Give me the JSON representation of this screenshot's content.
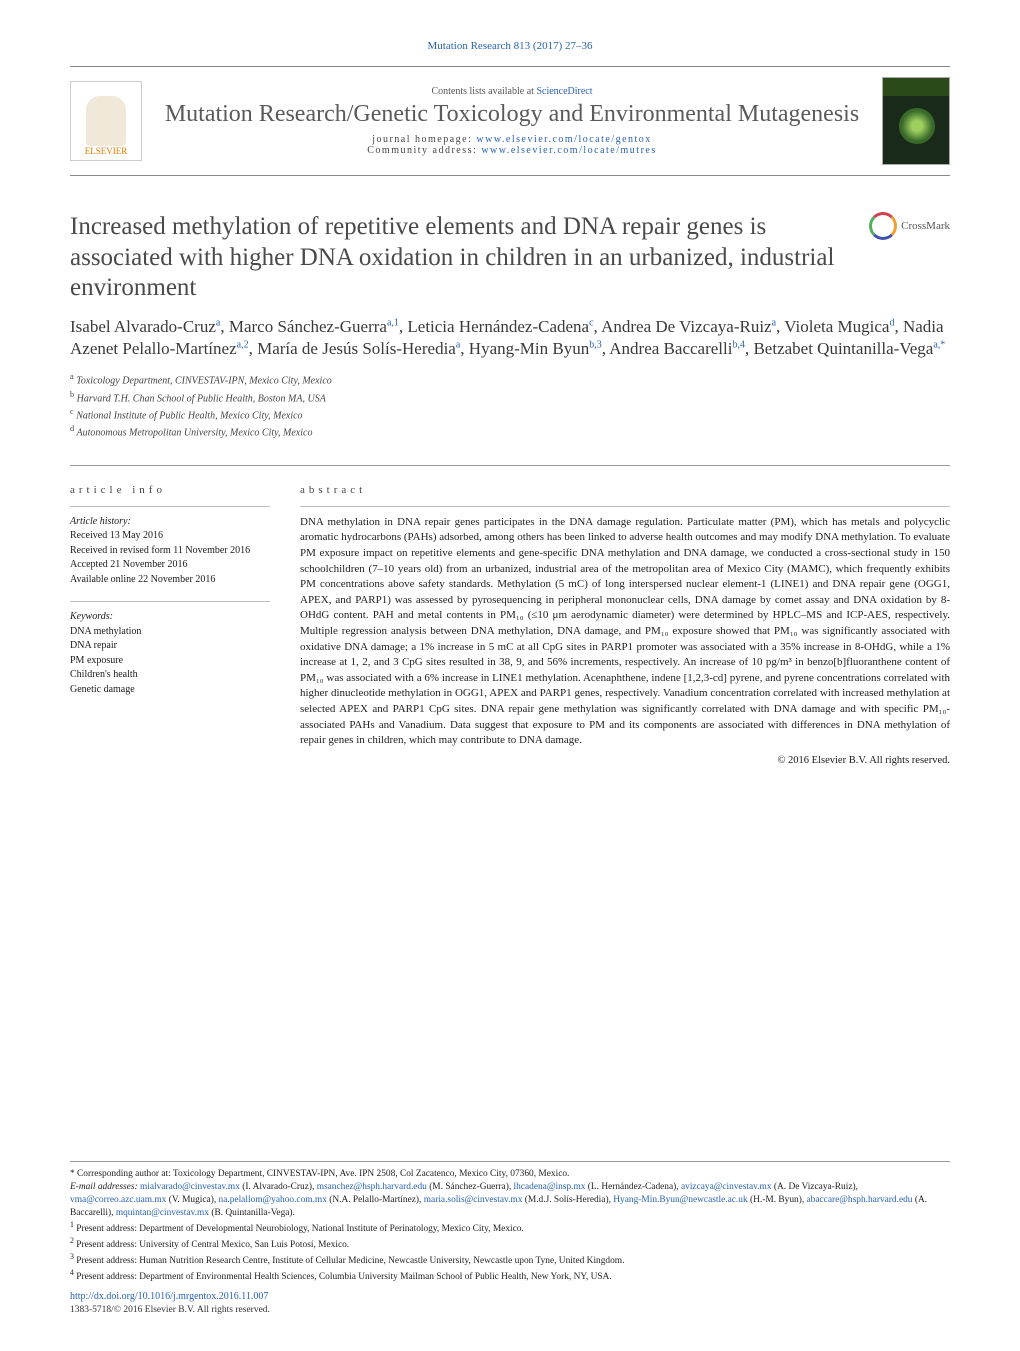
{
  "citation": "Mutation Research 813 (2017) 27–36",
  "header": {
    "contents_prefix": "Contents lists available at ",
    "contents_link": "ScienceDirect",
    "journal_name": "Mutation Research/Genetic Toxicology and Environmental Mutagenesis",
    "homepage_label": "journal homepage: ",
    "homepage_url": "www.elsevier.com/locate/gentox",
    "community_label": "Community address: ",
    "community_url": "www.elsevier.com/locate/mutres",
    "publisher": "ELSEVIER"
  },
  "crossmark_label": "CrossMark",
  "title": "Increased methylation of repetitive elements and DNA repair genes is associated with higher DNA oxidation in children in an urbanized, industrial environment",
  "authors_html": "Isabel Alvarado-Cruz<sup>a</sup>, Marco Sánchez-Guerra<sup>a,1</sup>, Leticia Hernández-Cadena<sup>c</sup>, Andrea De Vizcaya-Ruiz<sup>a</sup>, Violeta Mugica<sup>d</sup>, Nadia Azenet Pelallo-Martínez<sup>a,2</sup>, María de Jesús Solís-Heredia<sup>a</sup>, Hyang-Min Byun<sup>b,3</sup>, Andrea Baccarelli<sup>b,4</sup>, Betzabet Quintanilla-Vega<sup>a,*</sup>",
  "affiliations": [
    "a Toxicology Department, CINVESTAV-IPN, Mexico City, Mexico",
    "b Harvard T.H. Chan School of Public Health, Boston MA, USA",
    "c National Institute of Public Health, Mexico City, Mexico",
    "d Autonomous Metropolitan University, Mexico City, Mexico"
  ],
  "article_info": {
    "heading": "article info",
    "history_label": "Article history:",
    "received": "Received 13 May 2016",
    "revised": "Received in revised form 11 November 2016",
    "accepted": "Accepted 21 November 2016",
    "online": "Available online 22 November 2016",
    "keywords_label": "Keywords:",
    "keywords": [
      "DNA methylation",
      "DNA repair",
      "PM exposure",
      "Children's health",
      "Genetic damage"
    ]
  },
  "abstract": {
    "heading": "abstract",
    "body": "DNA methylation in DNA repair genes participates in the DNA damage regulation. Particulate matter (PM), which has metals and polycyclic aromatic hydrocarbons (PAHs) adsorbed, among others has been linked to adverse health outcomes and may modify DNA methylation. To evaluate PM exposure impact on repetitive elements and gene-specific DNA methylation and DNA damage, we conducted a cross-sectional study in 150 schoolchildren (7–10 years old) from an urbanized, industrial area of the metropolitan area of Mexico City (MAMC), which frequently exhibits PM concentrations above safety standards. Methylation (5 mC) of long interspersed nuclear element-1 (LINE1) and DNA repair gene (OGG1, APEX, and PARP1) was assessed by pyrosequencing in peripheral mononuclear cells, DNA damage by comet assay and DNA oxidation by 8-OHdG content. PAH and metal contents in PM₁₀ (≤10 μm aerodynamic diameter) were determined by HPLC–MS and ICP-AES, respectively. Multiple regression analysis between DNA methylation, DNA damage, and PM₁₀ exposure showed that PM₁₀ was significantly associated with oxidative DNA damage; a 1% increase in 5 mC at all CpG sites in PARP1 promoter was associated with a 35% increase in 8-OHdG, while a 1% increase at 1, 2, and 3 CpG sites resulted in 38, 9, and 56% increments, respectively. An increase of 10 pg/m³ in benzo[b]fluoranthene content of PM₁₀ was associated with a 6% increase in LINE1 methylation. Acenaphthene, indene [1,2,3-cd] pyrene, and pyrene concentrations correlated with higher dinucleotide methylation in OGG1, APEX and PARP1 genes, respectively. Vanadium concentration correlated with increased methylation at selected APEX and PARP1 CpG sites. DNA repair gene methylation was significantly correlated with DNA damage and with specific PM₁₀-associated PAHs and Vanadium. Data suggest that exposure to PM and its components are associated with differences in DNA methylation of repair genes in children, which may contribute to DNA damage.",
    "copyright": "© 2016 Elsevier B.V. All rights reserved."
  },
  "footnotes": {
    "corresponding": "* Corresponding author at: Toxicology Department, CINVESTAV-IPN, Ave. IPN 2508, Col Zacatenco, Mexico City, 07360, Mexico.",
    "emails_label": "E-mail addresses: ",
    "emails": "mialvarado@cinvestav.mx (I. Alvarado-Cruz), msanchez@hsph.harvard.edu (M. Sánchez-Guerra), lhcadena@insp.mx (L. Hernández-Cadena), avizcaya@cinvestav.mx (A. De Vizcaya-Ruiz), vma@correo.azc.uam.mx (V. Mugica), na.pelallom@yahoo.com.mx (N.A. Pelallo-Martínez), maria.solis@cinvestav.mx (M.d.J. Solís-Heredia), Hyang-Min.Byun@newcastle.ac.uk (H.-M. Byun), abaccare@hsph.harvard.edu (A. Baccarelli), mquintan@cinvestav.mx (B. Quintanilla-Vega).",
    "notes": [
      "1 Present address: Department of Developmental Neurobiology, National Institute of Perinatology, Mexico City, Mexico.",
      "2 Present address: University of Central Mexico, San Luis Potosí, Mexico.",
      "3 Present address: Human Nutrition Research Centre, Institute of Cellular Medicine, Newcastle University, Newcastle upon Tyne, United Kingdom.",
      "4 Present address: Department of Environmental Health Sciences, Columbia University Mailman School of Public Health, New York, NY, USA."
    ],
    "doi": "http://dx.doi.org/10.1016/j.mrgentox.2016.11.007",
    "issn": "1383-5718/© 2016 Elsevier B.V. All rights reserved."
  },
  "colors": {
    "link": "#2962b0",
    "text": "#1a1a1a",
    "heading_grey": "#4a4a4a",
    "rule": "#999999"
  }
}
